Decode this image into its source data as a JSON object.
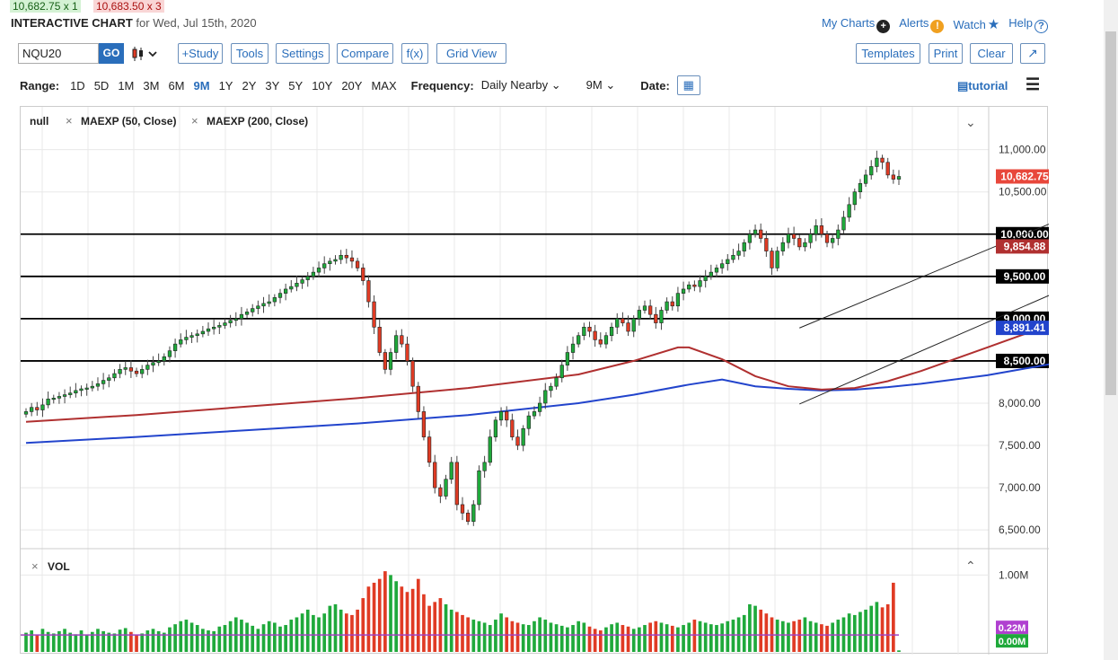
{
  "quotes": {
    "bid": "10,682.75 x 1",
    "ask": "10,683.50 x 3"
  },
  "header": {
    "title": "INTERACTIVE CHART",
    "subtitle": "for Wed, Jul 15th, 2020"
  },
  "toplinks": {
    "mycharts": "My Charts",
    "alerts": "Alerts",
    "watch": "Watch",
    "help": "Help"
  },
  "toolbar": {
    "symbol": "NQU20",
    "go": "GO",
    "study": "+Study",
    "tools": "Tools",
    "settings": "Settings",
    "compare": "Compare",
    "fx": "f(x)",
    "gridview": "Grid View",
    "templates": "Templates",
    "print": "Print",
    "clear": "Clear"
  },
  "range": {
    "label": "Range:",
    "options": [
      "1D",
      "5D",
      "1M",
      "3M",
      "6M",
      "9M",
      "1Y",
      "2Y",
      "3Y",
      "5Y",
      "10Y",
      "20Y",
      "MAX"
    ],
    "selected": "9M",
    "frequency_label": "Frequency:",
    "frequency": "Daily Nearby",
    "period": "9M",
    "date_label": "Date:",
    "tutorial": "tutorial"
  },
  "colors": {
    "up": "#1fa93b",
    "down": "#e03b24",
    "ma50": "#b03030",
    "ma200": "#2244cc",
    "accent": "#2a6ebb"
  },
  "chart_data": {
    "type": "candlestick",
    "symbol": "NQU20",
    "legend": [
      "null",
      "MAEXP (50, Close)",
      "MAEXP (200, Close)"
    ],
    "ylim": [
      6300,
      11400
    ],
    "y_ticks": [
      6500,
      7000,
      7500,
      8000,
      10500,
      11000
    ],
    "y_tick_labels": [
      "6,500.00",
      "7,000.00",
      "7,500.00",
      "8,000.00",
      "10,500.00",
      "11,000.00"
    ],
    "price_levels": [
      {
        "value": 10000,
        "label": "10,000.00"
      },
      {
        "value": 9500,
        "label": "9,500.00"
      },
      {
        "value": 9000,
        "label": "9,000.00"
      },
      {
        "value": 8500,
        "label": "8,500.00"
      }
    ],
    "last_price": {
      "value": 10682.75,
      "label": "10,682.75"
    },
    "ma50": {
      "name": "MAEXP (50, Close)",
      "last": 9854.88,
      "last_label": "9,854.88",
      "points": [
        [
          0,
          7780
        ],
        [
          20,
          7860
        ],
        [
          40,
          7960
        ],
        [
          60,
          8060
        ],
        [
          80,
          8180
        ],
        [
          100,
          8340
        ],
        [
          110,
          8500
        ],
        [
          118,
          8660
        ],
        [
          120,
          8660
        ],
        [
          126,
          8520
        ],
        [
          132,
          8320
        ],
        [
          138,
          8200
        ],
        [
          144,
          8160
        ],
        [
          150,
          8180
        ],
        [
          156,
          8260
        ],
        [
          162,
          8380
        ],
        [
          168,
          8520
        ],
        [
          174,
          8660
        ],
        [
          180,
          8800
        ],
        [
          186,
          8940
        ],
        [
          192,
          9100
        ],
        [
          198,
          9260
        ],
        [
          204,
          9420
        ],
        [
          210,
          9560
        ],
        [
          216,
          9700
        ],
        [
          220,
          9854.88
        ]
      ]
    },
    "ma200": {
      "name": "MAEXP (200, Close)",
      "last": 8891.41,
      "last_label": "8,891.41",
      "points": [
        [
          0,
          7530
        ],
        [
          20,
          7600
        ],
        [
          40,
          7680
        ],
        [
          60,
          7760
        ],
        [
          80,
          7860
        ],
        [
          100,
          8000
        ],
        [
          110,
          8100
        ],
        [
          120,
          8220
        ],
        [
          126,
          8280
        ],
        [
          132,
          8200
        ],
        [
          138,
          8170
        ],
        [
          144,
          8150
        ],
        [
          150,
          8160
        ],
        [
          156,
          8190
        ],
        [
          162,
          8230
        ],
        [
          168,
          8280
        ],
        [
          174,
          8330
        ],
        [
          180,
          8400
        ],
        [
          186,
          8470
        ],
        [
          192,
          8550
        ],
        [
          198,
          8620
        ],
        [
          204,
          8680
        ],
        [
          210,
          8760
        ],
        [
          216,
          8830
        ],
        [
          220,
          8891.41
        ]
      ]
    },
    "channel": {
      "upper": [
        [
          140,
          8890
        ],
        [
          226,
          11230
        ]
      ],
      "lower": [
        [
          140,
          7990
        ],
        [
          224,
          10380
        ]
      ]
    },
    "closes": [
      7900,
      7950,
      7920,
      7980,
      8050,
      8060,
      8080,
      8100,
      8120,
      8150,
      8170,
      8180,
      8200,
      8230,
      8270,
      8300,
      8350,
      8400,
      8420,
      8380,
      8350,
      8400,
      8450,
      8480,
      8500,
      8550,
      8620,
      8700,
      8750,
      8780,
      8800,
      8820,
      8850,
      8880,
      8900,
      8920,
      8950,
      8980,
      9000,
      9050,
      9080,
      9120,
      9150,
      9180,
      9200,
      9250,
      9300,
      9350,
      9380,
      9420,
      9460,
      9500,
      9550,
      9600,
      9650,
      9680,
      9700,
      9750,
      9720,
      9680,
      9600,
      9450,
      9200,
      8900,
      8600,
      8400,
      8600,
      8800,
      8700,
      8500,
      8200,
      7900,
      7600,
      7300,
      7000,
      6900,
      7100,
      7300,
      6800,
      6700,
      6600,
      6800,
      7200,
      7300,
      7600,
      7800,
      7900,
      7800,
      7600,
      7500,
      7700,
      7850,
      7900,
      8000,
      8150,
      8200,
      8300,
      8450,
      8600,
      8700,
      8800,
      8900,
      8850,
      8750,
      8700,
      8800,
      8900,
      9000,
      8950,
      8850,
      9000,
      9100,
      9150,
      9050,
      8950,
      9100,
      9200,
      9150,
      9300,
      9350,
      9400,
      9380,
      9450,
      9500,
      9550,
      9600,
      9650,
      9700,
      9750,
      9800,
      9900,
      10000,
      10050,
      9950,
      9800,
      9600,
      9800,
      9900,
      10000,
      9950,
      9850,
      9900,
      10000,
      10100,
      10000,
      9900,
      9950,
      10050,
      10200,
      10350,
      10500,
      10600,
      10700,
      10800,
      10900,
      10850,
      10700,
      10650,
      10682.75
    ]
  },
  "volume": {
    "label": "VOL",
    "tick": "1.00M",
    "avg_label": "0.22M",
    "last_label": "0.00M",
    "values": [
      0.25,
      0.28,
      0.22,
      0.3,
      0.26,
      0.24,
      0.27,
      0.3,
      0.25,
      0.23,
      0.28,
      0.22,
      0.26,
      0.3,
      0.27,
      0.25,
      0.24,
      0.29,
      0.31,
      0.26,
      0.22,
      0.24,
      0.28,
      0.3,
      0.27,
      0.25,
      0.32,
      0.36,
      0.4,
      0.42,
      0.38,
      0.35,
      0.3,
      0.28,
      0.27,
      0.33,
      0.35,
      0.4,
      0.45,
      0.42,
      0.38,
      0.34,
      0.3,
      0.36,
      0.4,
      0.38,
      0.33,
      0.35,
      0.42,
      0.45,
      0.5,
      0.55,
      0.48,
      0.45,
      0.5,
      0.6,
      0.62,
      0.55,
      0.5,
      0.48,
      0.55,
      0.7,
      0.85,
      0.9,
      0.95,
      1.05,
      1.0,
      0.92,
      0.85,
      0.78,
      0.82,
      0.95,
      0.75,
      0.6,
      0.65,
      0.7,
      0.62,
      0.55,
      0.52,
      0.48,
      0.45,
      0.42,
      0.4,
      0.38,
      0.35,
      0.42,
      0.5,
      0.45,
      0.4,
      0.38,
      0.36,
      0.35,
      0.4,
      0.45,
      0.42,
      0.38,
      0.36,
      0.34,
      0.32,
      0.35,
      0.4,
      0.38,
      0.33,
      0.3,
      0.28,
      0.32,
      0.36,
      0.38,
      0.35,
      0.33,
      0.3,
      0.32,
      0.35,
      0.38,
      0.4,
      0.38,
      0.36,
      0.34,
      0.32,
      0.35,
      0.38,
      0.42,
      0.4,
      0.38,
      0.36,
      0.35,
      0.37,
      0.4,
      0.42,
      0.45,
      0.48,
      0.62,
      0.6,
      0.55,
      0.5,
      0.45,
      0.42,
      0.4,
      0.38,
      0.4,
      0.42,
      0.45,
      0.4,
      0.38,
      0.36,
      0.34,
      0.38,
      0.42,
      0.45,
      0.5,
      0.48,
      0.52,
      0.55,
      0.6,
      0.65,
      0.58,
      0.62,
      0.9,
      0.02
    ]
  }
}
